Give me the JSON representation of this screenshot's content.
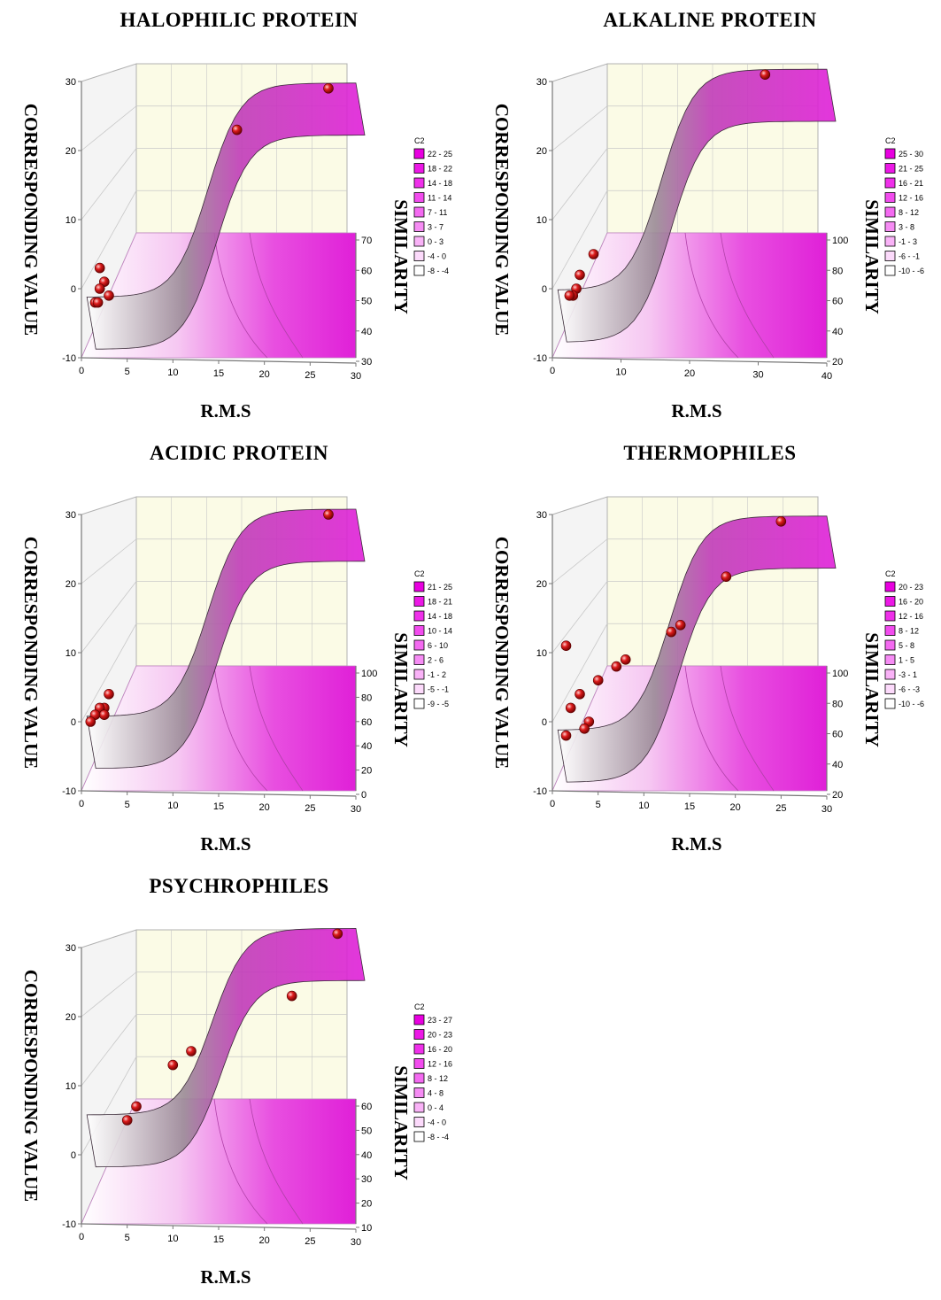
{
  "chart_data": [
    {
      "type": "surface3d",
      "title": "HALOPHILIC PROTEIN",
      "xlabel": "R.M.S",
      "ylabel": "CORRESPONDING VALUE",
      "zlabel": "SIMILARITY",
      "xlim": [
        0,
        30
      ],
      "x_ticks": [
        "0",
        "5",
        "10",
        "15",
        "20",
        "25",
        "30"
      ],
      "ylim": [
        -10,
        30
      ],
      "y_ticks": [
        "-10",
        "0",
        "10",
        "20",
        "30"
      ],
      "z_ticks": [
        "30",
        "40",
        "50",
        "60",
        "70"
      ],
      "legend_title": "C2",
      "legend_ranges": [
        "22 - 25",
        "18 - 22",
        "14 - 18",
        "11 - 14",
        "7 - 11",
        "3 - 7",
        "0 - 3",
        "-4 - 0",
        "-8 - -4"
      ],
      "points": [
        [
          27,
          29
        ],
        [
          17,
          23
        ],
        [
          2,
          3
        ],
        [
          2.5,
          1
        ],
        [
          2,
          0
        ],
        [
          3,
          -1
        ],
        [
          1.5,
          -2
        ],
        [
          1.8,
          -2
        ]
      ]
    },
    {
      "type": "surface3d",
      "title": "ALKALINE PROTEIN",
      "xlabel": "R.M.S",
      "ylabel": "CORRESPONDING VALUE",
      "zlabel": "SIMILARITY",
      "xlim": [
        0,
        40
      ],
      "x_ticks": [
        "0",
        "10",
        "20",
        "30",
        "40"
      ],
      "ylim": [
        -10,
        30
      ],
      "y_ticks": [
        "-10",
        "0",
        "10",
        "20",
        "30"
      ],
      "z_ticks": [
        "20",
        "40",
        "60",
        "80",
        "100"
      ],
      "legend_title": "C2",
      "legend_ranges": [
        "25 - 30",
        "21 - 25",
        "16 - 21",
        "12 - 16",
        "8 - 12",
        "3 - 8",
        "-1 - 3",
        "-6 - -1",
        "-10 - -6"
      ],
      "points": [
        [
          31,
          31
        ],
        [
          6,
          5
        ],
        [
          4,
          2
        ],
        [
          3.5,
          0
        ],
        [
          3,
          -1
        ],
        [
          2.5,
          -1
        ]
      ]
    },
    {
      "type": "surface3d",
      "title": "ACIDIC PROTEIN",
      "xlabel": "R.M.S",
      "ylabel": "CORRESPONDING VALUE",
      "zlabel": "SIMILARITY",
      "xlim": [
        0,
        30
      ],
      "x_ticks": [
        "0",
        "5",
        "10",
        "15",
        "20",
        "25",
        "30"
      ],
      "ylim": [
        -10,
        30
      ],
      "y_ticks": [
        "-10",
        "0",
        "10",
        "20",
        "30"
      ],
      "z_ticks": [
        "0",
        "20",
        "40",
        "60",
        "80",
        "100"
      ],
      "legend_title": "C2",
      "legend_ranges": [
        "21 - 25",
        "18 - 21",
        "14 - 18",
        "10 - 14",
        "6 - 10",
        "2 - 6",
        "-1 - 2",
        "-5 - -1",
        "-9 - -5"
      ],
      "points": [
        [
          27,
          30
        ],
        [
          3,
          4
        ],
        [
          2.5,
          2
        ],
        [
          2,
          2
        ],
        [
          2.5,
          1
        ],
        [
          1.5,
          1
        ],
        [
          1,
          0
        ]
      ]
    },
    {
      "type": "surface3d",
      "title": "THERMOPHILES",
      "xlabel": "R.M.S",
      "ylabel": "CORRESPONDING VALUE",
      "zlabel": "SIMILARITY",
      "xlim": [
        0,
        30
      ],
      "x_ticks": [
        "0",
        "5",
        "10",
        "15",
        "20",
        "25",
        "30"
      ],
      "ylim": [
        -10,
        30
      ],
      "y_ticks": [
        "-10",
        "0",
        "10",
        "20",
        "30"
      ],
      "z_ticks": [
        "20",
        "40",
        "60",
        "80",
        "100"
      ],
      "legend_title": "C2",
      "legend_ranges": [
        "20 - 23",
        "16 - 20",
        "12 - 16",
        "8 - 12",
        "5 - 8",
        "1 - 5",
        "-3 - 1",
        "-6 - -3",
        "-10 - -6"
      ],
      "points": [
        [
          25,
          29
        ],
        [
          19,
          21
        ],
        [
          14,
          14
        ],
        [
          13,
          13
        ],
        [
          8,
          9
        ],
        [
          7,
          8
        ],
        [
          5,
          6
        ],
        [
          1.5,
          11
        ],
        [
          3,
          4
        ],
        [
          2,
          2
        ],
        [
          4,
          0
        ],
        [
          3.5,
          -1
        ],
        [
          1.5,
          -2
        ]
      ]
    },
    {
      "type": "surface3d",
      "title": "PSYCHROPHILES",
      "xlabel": "R.M.S",
      "ylabel": "CORRESPONDING VALUE",
      "zlabel": "SIMILARITY",
      "xlim": [
        0,
        30
      ],
      "x_ticks": [
        "0",
        "5",
        "10",
        "15",
        "20",
        "25",
        "30"
      ],
      "ylim": [
        -10,
        30
      ],
      "y_ticks": [
        "-10",
        "0",
        "10",
        "20",
        "30"
      ],
      "z_ticks": [
        "10",
        "20",
        "30",
        "40",
        "50",
        "60"
      ],
      "legend_title": "C2",
      "legend_ranges": [
        "23 - 27",
        "20 - 23",
        "16 - 20",
        "12 - 16",
        "8 - 12",
        "4 - 8",
        "0 - 4",
        "-4 - 0",
        "-8 - -4"
      ],
      "points": [
        [
          28,
          32
        ],
        [
          23,
          23
        ],
        [
          12,
          15
        ],
        [
          10,
          13
        ],
        [
          6,
          7
        ],
        [
          5,
          5
        ]
      ]
    }
  ],
  "colors": {
    "surface": "#e020d8",
    "surface_light": "#f6c8f2",
    "wall": "#fbfbe6",
    "wall_grid": "#c8c8c8",
    "point": "#dd1c1c",
    "legend_shades": [
      "#e800e0",
      "#ec18e6",
      "#ef30ea",
      "#f24cee",
      "#f46af1",
      "#f68cf4",
      "#f9b2f7",
      "#fcdafb",
      "#ffffff"
    ]
  }
}
